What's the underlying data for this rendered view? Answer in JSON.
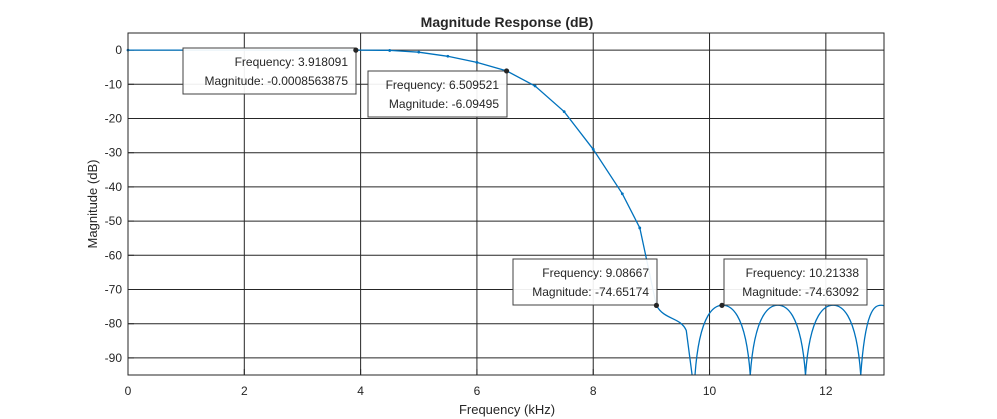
{
  "chart_data": {
    "type": "line",
    "title": "Magnitude Response (dB)",
    "xlabel": "Frequency (kHz)",
    "ylabel": "Magnitude (dB)",
    "xlim": [
      0,
      13
    ],
    "ylim": [
      -95,
      5
    ],
    "xticks": [
      0,
      2,
      4,
      6,
      8,
      10,
      12
    ],
    "yticks": [
      0,
      -10,
      -20,
      -30,
      -40,
      -50,
      -60,
      -70,
      -80,
      -90
    ],
    "grid": true,
    "line_color": "#0072bd",
    "series": [
      {
        "x": [
          0,
          3.918091,
          4.5,
          5.0,
          5.5,
          6.0,
          6.509521,
          7.0,
          7.5,
          8.0,
          8.5,
          8.8,
          9.08667
        ],
        "y": [
          0,
          -0.0008563875,
          -0.1,
          -0.6,
          -1.8,
          -3.6,
          -6.09495,
          -10.5,
          -18.0,
          -29.0,
          -42.0,
          -52.0,
          -74.65174
        ]
      }
    ],
    "annotations": [
      {
        "frequency_label": "Frequency: 3.918091",
        "magnitude_label": "Magnitude: -0.0008563875",
        "x": 3.918091,
        "y": -0.0008563875
      },
      {
        "frequency_label": "Frequency: 6.509521",
        "magnitude_label": "Magnitude: -6.09495",
        "x": 6.509521,
        "y": -6.09495
      },
      {
        "frequency_label": "Frequency: 9.08667",
        "magnitude_label": "Magnitude: -74.65174",
        "x": 9.08667,
        "y": -74.65174
      },
      {
        "frequency_label": "Frequency: 10.21338",
        "magnitude_label": "Magnitude: -74.63092",
        "x": 10.21338,
        "y": -74.63092
      }
    ]
  }
}
